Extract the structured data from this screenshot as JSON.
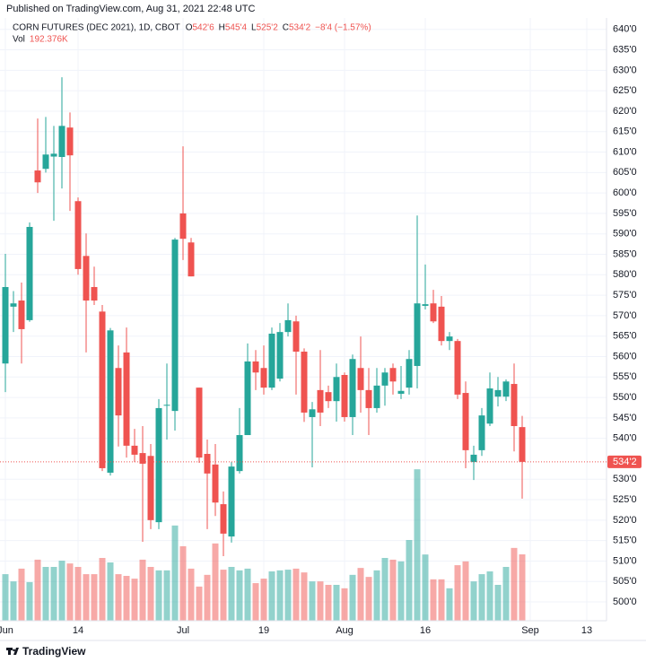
{
  "header": {
    "published": "Published on TradingView.com, Aug 31, 2021 22:48 UTC"
  },
  "chart_data": {
    "type": "candlestick",
    "legend": {
      "symbol": "CORN FUTURES (DEC 2021), 1D, CBOT",
      "fields": [
        {
          "key": "O",
          "value": "542'6"
        },
        {
          "key": "H",
          "value": "545'4"
        },
        {
          "key": "L",
          "value": "525'2"
        },
        {
          "key": "C",
          "value": "534'2"
        }
      ],
      "change": "−8'4 (−1.57%)",
      "volume_key": "Vol",
      "volume_value": "192.376K"
    },
    "categories": [
      "Jun",
      null,
      null,
      null,
      null,
      null,
      null,
      null,
      null,
      "14",
      null,
      null,
      null,
      null,
      null,
      null,
      null,
      null,
      null,
      null,
      null,
      null,
      "Jul",
      null,
      null,
      null,
      null,
      null,
      null,
      null,
      null,
      null,
      "19",
      null,
      null,
      null,
      null,
      null,
      null,
      null,
      null,
      null,
      "Aug",
      null,
      null,
      null,
      null,
      null,
      null,
      null,
      null,
      null,
      "16",
      null,
      null,
      null,
      null,
      null,
      null,
      null,
      null,
      null,
      null,
      null,
      null,
      "Sep",
      null,
      null,
      null,
      null,
      null,
      null,
      "13",
      null,
      null
    ],
    "open": [
      558.3,
      572.2,
      573.7,
      568.9,
      605.5,
      605.9,
      608.9,
      608.8,
      616,
      598,
      584.6,
      577,
      571,
      531.6,
      557.2,
      561,
      538.2,
      536.4,
      535.7,
      519.5,
      548,
      546.7,
      595,
      587.9,
      552.4,
      536.2,
      533.6,
      523.9,
      516,
      532,
      540.8,
      558.8,
      557.2,
      552.4,
      554.6,
      566,
      568.6,
      561.2,
      545.2,
      551.8,
      551.3,
      549.1,
      555.5,
      545.2,
      557.2,
      551.8,
      547.4,
      552.9,
      557.2,
      550.9,
      552.4,
      557.7,
      572.4,
      573,
      572.2,
      563.8,
      563.8,
      551.1,
      534.2,
      537.1,
      543.6,
      550.2,
      550.2,
      553.3,
      542.75,
      null,
      null,
      null,
      null,
      null,
      null,
      null,
      null,
      null,
      null
    ],
    "high": [
      585.1,
      576,
      578.1,
      592.8,
      618.2,
      618.6,
      616.4,
      628.3,
      619.7,
      598.9,
      590.1,
      582,
      572.6,
      567,
      562.7,
      567.1,
      542.3,
      543,
      538.6,
      549.6,
      558.3,
      589,
      611.4,
      589,
      552.4,
      539.7,
      538.6,
      527,
      534.2,
      547.4,
      563.2,
      561.6,
      562.7,
      567.1,
      568.2,
      573,
      570,
      562,
      548.9,
      561.6,
      552.9,
      558.3,
      556.1,
      560.5,
      564.9,
      557.2,
      557.2,
      557.2,
      558.3,
      557.7,
      561.6,
      594.5,
      582.5,
      576.3,
      574.8,
      566,
      564.3,
      553.9,
      538.2,
      547.4,
      556.1,
      555,
      554.4,
      558.3,
      545.5,
      null,
      null,
      null,
      null,
      null,
      null,
      null,
      null,
      null,
      null
    ],
    "low": [
      551.3,
      566,
      558.3,
      568.5,
      600,
      605,
      593.2,
      601.1,
      595.6,
      580,
      561,
      572.6,
      532,
      530.9,
      538,
      535.3,
      534.2,
      514.7,
      517.8,
      517.8,
      539.7,
      541.9,
      583.6,
      579.6,
      534,
      517.8,
      521,
      511.2,
      514.5,
      531.4,
      540.8,
      551.8,
      550.7,
      551.8,
      553.9,
      564.9,
      550.7,
      544,
      532.9,
      543,
      547.4,
      544.1,
      544.1,
      540.8,
      546.3,
      540.8,
      546.3,
      548,
      550.7,
      549.6,
      550.7,
      552.2,
      571.5,
      568.2,
      562.7,
      561.6,
      549.6,
      532.7,
      529.8,
      535.7,
      543,
      547.8,
      549.1,
      536.8,
      525.25,
      null,
      null,
      null,
      null,
      null,
      null,
      null,
      null,
      null,
      null
    ],
    "close": [
      577,
      573,
      566.7,
      591.7,
      602.6,
      609.4,
      609.6,
      616.4,
      609.2,
      581.4,
      573.7,
      573.7,
      532.7,
      566.4,
      545.6,
      538.2,
      536,
      533.8,
      520,
      547.4,
      548.2,
      588.6,
      588.8,
      579.6,
      535.3,
      531.4,
      524.3,
      516.7,
      533.1,
      540.8,
      558.8,
      556.1,
      552.4,
      565.6,
      566,
      568.9,
      561.2,
      546.3,
      547.1,
      546.3,
      549.1,
      555,
      545.2,
      559.4,
      551.8,
      547.4,
      552.9,
      556.1,
      553.9,
      551.6,
      559.4,
      573,
      572.8,
      568.6,
      563.8,
      564.9,
      550.7,
      537.1,
      536,
      545.6,
      552.2,
      551.8,
      553.9,
      543,
      534.25,
      null,
      null,
      null,
      null,
      null,
      null,
      null,
      null,
      null,
      null
    ],
    "volume": [
      135000,
      114000,
      151000,
      112000,
      177000,
      156000,
      156000,
      174000,
      166000,
      156000,
      135000,
      135000,
      182000,
      169000,
      135000,
      130000,
      122000,
      177000,
      156000,
      146000,
      146000,
      276000,
      216000,
      151000,
      99000,
      133000,
      224000,
      148000,
      156000,
      146000,
      151000,
      109000,
      122000,
      143000,
      146000,
      148000,
      151000,
      140000,
      114000,
      114000,
      104000,
      104000,
      94000,
      133000,
      153000,
      127000,
      146000,
      182000,
      177000,
      172000,
      234000,
      439000,
      192000,
      120000,
      120000,
      94000,
      161000,
      172000,
      114000,
      135000,
      143000,
      104000,
      156000,
      211000,
      192376,
      null,
      null,
      null,
      null,
      null,
      null,
      null,
      null,
      null,
      null
    ],
    "up_color": "#26a69a",
    "down_color": "#ef5350",
    "volume_up_color": "rgba(38,166,154,0.5)",
    "volume_down_color": "rgba(239,83,80,0.5)",
    "ylim": [
      495.4,
      642.8
    ],
    "yticks": [
      {
        "value": 640,
        "label": "640'0"
      },
      {
        "value": 635,
        "label": "635'0"
      },
      {
        "value": 630,
        "label": "630'0"
      },
      {
        "value": 625,
        "label": "625'0"
      },
      {
        "value": 620,
        "label": "620'0"
      },
      {
        "value": 615,
        "label": "615'0"
      },
      {
        "value": 610,
        "label": "610'0"
      },
      {
        "value": 605,
        "label": "605'0"
      },
      {
        "value": 600,
        "label": "600'0"
      },
      {
        "value": 595,
        "label": "595'0"
      },
      {
        "value": 590,
        "label": "590'0"
      },
      {
        "value": 585,
        "label": "585'0"
      },
      {
        "value": 580,
        "label": "580'0"
      },
      {
        "value": 575,
        "label": "575'0"
      },
      {
        "value": 570,
        "label": "570'0"
      },
      {
        "value": 565,
        "label": "565'0"
      },
      {
        "value": 560,
        "label": "560'0"
      },
      {
        "value": 555,
        "label": "555'0"
      },
      {
        "value": 550,
        "label": "550'0"
      },
      {
        "value": 545,
        "label": "545'0"
      },
      {
        "value": 540,
        "label": "540'0"
      },
      {
        "value": 530,
        "label": "530'0"
      },
      {
        "value": 525,
        "label": "525'0"
      },
      {
        "value": 520,
        "label": "520'0"
      },
      {
        "value": 515,
        "label": "515'0"
      },
      {
        "value": 510,
        "label": "510'0"
      },
      {
        "value": 505,
        "label": "505'0"
      },
      {
        "value": 500,
        "label": "500'0"
      }
    ],
    "volume_ylim": [
      0,
      780000
    ],
    "last_price": {
      "value": 534.25,
      "label": "534'2"
    },
    "grid": true
  },
  "footer": {
    "brand": "TradingView"
  }
}
